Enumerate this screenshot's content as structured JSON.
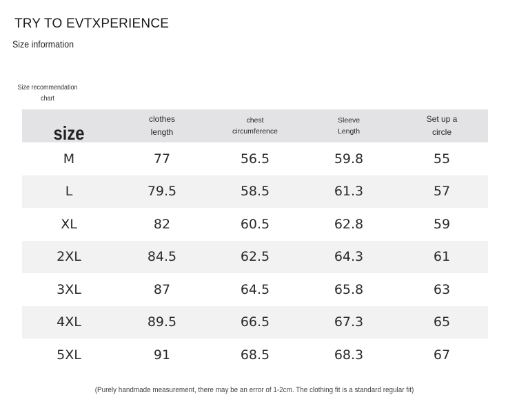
{
  "brand": "TRY TO EVTXPERIENCE",
  "subtitle": "Size information",
  "chart_label": "Size recommendation chart",
  "table": {
    "headers": [
      "size",
      "clothes length",
      "chest circumference",
      "Sleeve Length",
      "Set up a circle"
    ],
    "rows": [
      [
        "M",
        "77",
        "56.5",
        "59.8",
        "55"
      ],
      [
        "L",
        "79.5",
        "58.5",
        "61.3",
        "57"
      ],
      [
        "XL",
        "82",
        "60.5",
        "62.8",
        "59"
      ],
      [
        "2XL",
        "84.5",
        "62.5",
        "64.3",
        "61"
      ],
      [
        "3XL",
        "87",
        "64.5",
        "65.8",
        "63"
      ],
      [
        "4XL",
        "89.5",
        "66.5",
        "67.3",
        "65"
      ],
      [
        "5XL",
        "91",
        "68.5",
        "68.3",
        "67"
      ]
    ]
  },
  "footnote": "(Purely handmade measurement, there may be an error of 1-2cm. The clothing fit is a standard regular fit)"
}
